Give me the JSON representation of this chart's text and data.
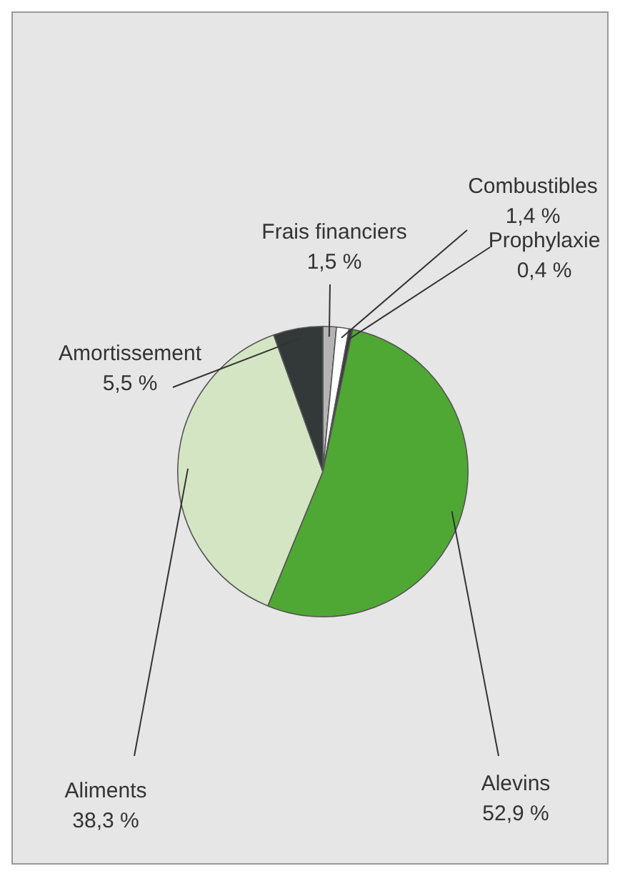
{
  "chart_data": {
    "type": "pie",
    "categories": [
      "Frais financiers",
      "Combustibles",
      "Prophylaxie",
      "Alevins",
      "Aliments",
      "Amortissement"
    ],
    "values": [
      1.5,
      1.4,
      0.4,
      52.9,
      38.3,
      5.5
    ],
    "value_labels": [
      "1,5 %",
      "1,4 %",
      "0,4 %",
      "52,9 %",
      "38,3 %",
      "5,5 %"
    ],
    "colors": [
      "#b4b4b4",
      "#ffffff",
      "#3a3a3a",
      "#4fa834",
      "#d4e5c3",
      "#333838"
    ],
    "legend": false
  }
}
